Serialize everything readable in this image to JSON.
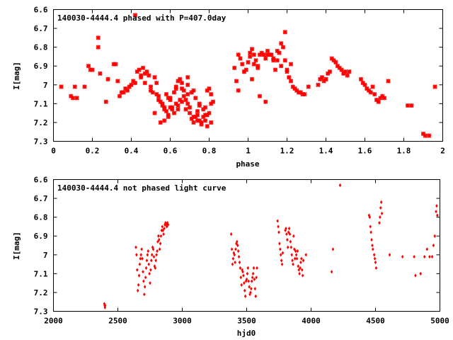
{
  "chart_data": [
    {
      "type": "scatter",
      "title": "140030-4444.4 phased with P=407.0day",
      "xlabel": "phase",
      "ylabel": "I[mag]",
      "xlim": [
        0,
        2
      ],
      "ylim": [
        7.3,
        6.6
      ],
      "y_inverted": true,
      "xticks": [
        "0",
        "0.2",
        "0.4",
        "0.6",
        "0.8",
        "1",
        "1.2",
        "1.4",
        "1.6",
        "1.8",
        "2"
      ],
      "yticks": [
        "6.6",
        "6.7",
        "6.8",
        "6.9",
        "7",
        "7.1",
        "7.2",
        "7.3"
      ],
      "color": "#ff0000",
      "marker": "cross",
      "grid": false,
      "series": [
        {
          "x": [
            0.04,
            0.09,
            0.1,
            0.11,
            0.12,
            0.16,
            0.18,
            0.19,
            0.2,
            0.23,
            0.23,
            0.24,
            0.27,
            0.28,
            0.31,
            0.32,
            0.33,
            0.34,
            0.35,
            0.36,
            0.37,
            0.38,
            0.39,
            0.4,
            0.41,
            0.42,
            0.43,
            0.44,
            0.45,
            0.46,
            0.47,
            0.48,
            0.49,
            0.5,
            0.51,
            0.52,
            0.53,
            0.54,
            0.55,
            0.56,
            0.57,
            0.58,
            0.59,
            0.6,
            0.61,
            0.62,
            0.63,
            0.64,
            0.65,
            0.66,
            0.67,
            0.68,
            0.69,
            0.7,
            0.71,
            0.72,
            0.73,
            0.74,
            0.75,
            0.76,
            0.77,
            0.78,
            0.79,
            0.8,
            0.81,
            0.82,
            0.42,
            0.45,
            0.47,
            0.5,
            0.53,
            0.56,
            0.58,
            0.6,
            0.62,
            0.64,
            0.66,
            0.68,
            0.7,
            0.72,
            0.74,
            0.76,
            0.78,
            0.8,
            0.52,
            0.55,
            0.57,
            0.59,
            0.61,
            0.63,
            0.65,
            0.67,
            0.69,
            0.71,
            0.73,
            0.75,
            0.77,
            0.79,
            0.81,
            0.57,
            0.6,
            0.63,
            0.66,
            0.69,
            0.72,
            0.75,
            0.78,
            0.81,
            0.54,
            0.59,
            0.64,
            0.69,
            0.74,
            0.79,
            0.93,
            0.94,
            0.95,
            0.96,
            0.97,
            0.98,
            0.99,
            1.0,
            1.01,
            1.02,
            1.03,
            1.04,
            1.05,
            1.06,
            1.07,
            1.08,
            1.09,
            1.1,
            1.11,
            1.12,
            1.13,
            1.14,
            1.15,
            1.16,
            1.17,
            1.18,
            1.19,
            1.2,
            1.21,
            1.22,
            1.23,
            1.24,
            1.25,
            1.26,
            1.27,
            1.28,
            1.29,
            1.31,
            1.36,
            1.37,
            1.38,
            1.39,
            1.4,
            1.41,
            1.42,
            1.43,
            1.44,
            1.45,
            1.46,
            1.47,
            1.48,
            1.49,
            1.5,
            1.51,
            1.52,
            1.58,
            1.59,
            1.6,
            1.61,
            1.62,
            1.63,
            1.64,
            1.65,
            1.66,
            1.67,
            1.68,
            1.69,
            1.7,
            1.72,
            1.82,
            1.84,
            1.9,
            1.91,
            1.93,
            1.96,
            1.01,
            1.03,
            1.06,
            1.09,
            1.15,
            1.19,
            1.22,
            0.95,
            0.98,
            1.02,
            1.05,
            1.08,
            1.1,
            1.13,
            1.17,
            1.2
          ],
          "y": [
            7.01,
            7.06,
            7.07,
            7.01,
            7.07,
            7.01,
            6.9,
            6.92,
            6.92,
            6.75,
            6.8,
            6.94,
            7.09,
            6.97,
            6.89,
            6.89,
            6.98,
            7.06,
            7.04,
            7.04,
            7.02,
            7.03,
            7.01,
            7.0,
            6.98,
            6.99,
            6.93,
            6.92,
            6.96,
            6.91,
            6.94,
            6.93,
            6.95,
            7.01,
            7.04,
            6.96,
            6.99,
            7.06,
            7.09,
            7.11,
            7.13,
            7.05,
            7.07,
            7.08,
            7.12,
            7.04,
            7.01,
            6.98,
            6.97,
            7.02,
            7.06,
            7.13,
            7.1,
            7.15,
            7.18,
            7.2,
            7.17,
            7.14,
            7.19,
            7.2,
            7.17,
            7.12,
            7.03,
            7.02,
            7.05,
            7.09,
            6.63,
            6.95,
            6.99,
            7.03,
            7.05,
            7.1,
            7.14,
            7.12,
            7.15,
            7.11,
            7.09,
            7.08,
            7.12,
            7.17,
            7.19,
            7.21,
            7.19,
            7.15,
            7.15,
            7.2,
            7.19,
            7.17,
            7.13,
            7.1,
            7.08,
            7.03,
            7.0,
            7.04,
            7.07,
            7.1,
            7.13,
            7.16,
            7.1,
            7.12,
            7.07,
            7.02,
            6.99,
            6.96,
            7.03,
            7.11,
            7.16,
            7.2,
            7.08,
            7.16,
            7.13,
            7.05,
            7.16,
            7.22,
            6.91,
            6.98,
            7.03,
            6.86,
            6.89,
            6.93,
            6.92,
            6.88,
            6.85,
            6.81,
            6.84,
            6.87,
            6.9,
            6.84,
            6.83,
            6.84,
            6.86,
            6.84,
            6.84,
            6.84,
            6.87,
            6.92,
            6.87,
            6.83,
            6.78,
            6.8,
            6.87,
            6.93,
            6.96,
            6.98,
            7.01,
            7.02,
            7.03,
            7.04,
            7.04,
            7.05,
            7.05,
            7.01,
            7.0,
            6.97,
            6.96,
            6.98,
            6.97,
            6.94,
            6.93,
            6.86,
            6.87,
            6.88,
            6.9,
            6.91,
            6.92,
            6.94,
            6.93,
            6.95,
            6.93,
            6.97,
            6.99,
            7.0,
            7.02,
            7.03,
            7.04,
            7.01,
            7.05,
            7.08,
            7.09,
            7.07,
            7.06,
            7.07,
            6.98,
            7.11,
            7.11,
            7.26,
            7.27,
            7.27,
            7.01,
            6.83,
            6.89,
            7.06,
            7.09,
            6.82,
            6.72,
            6.89,
            6.84,
            6.93,
            6.97,
            6.91,
            6.84,
            6.82,
            6.86,
            6.9,
            6.92
          ]
        }
      ]
    },
    {
      "type": "scatter",
      "title": "140030-4444.4 not phased light curve",
      "xlabel": "hjd0",
      "ylabel": "I[mag]",
      "xlim": [
        2000,
        5000
      ],
      "ylim": [
        7.3,
        6.6
      ],
      "y_inverted": true,
      "xticks": [
        "2000",
        "2500",
        "3000",
        "3500",
        "4000",
        "4500",
        "5000"
      ],
      "yticks": [
        "6.6",
        "6.7",
        "6.8",
        "6.9",
        "7",
        "7.1",
        "7.2",
        "7.3"
      ],
      "color": "#ff0000",
      "marker": "diamond",
      "grid": false,
      "series": [
        {
          "x": [
            2395,
            2398,
            2400,
            2402,
            2640,
            2645,
            2650,
            2655,
            2660,
            2665,
            2670,
            2675,
            2680,
            2685,
            2690,
            2695,
            2700,
            2705,
            2710,
            2715,
            2720,
            2725,
            2730,
            2735,
            2740,
            2745,
            2750,
            2755,
            2760,
            2765,
            2770,
            2775,
            2780,
            2785,
            2790,
            2795,
            2800,
            2805,
            2810,
            2815,
            2820,
            2825,
            2830,
            2835,
            2840,
            2845,
            2850,
            2855,
            2860,
            2865,
            2870,
            2875,
            2880,
            2885,
            2890,
            3380,
            3385,
            3390,
            3395,
            3400,
            3405,
            3410,
            3415,
            3420,
            3425,
            3430,
            3435,
            3440,
            3445,
            3450,
            3455,
            3460,
            3465,
            3470,
            3475,
            3480,
            3485,
            3490,
            3495,
            3500,
            3505,
            3510,
            3515,
            3520,
            3525,
            3530,
            3535,
            3540,
            3545,
            3550,
            3555,
            3560,
            3565,
            3570,
            3575,
            3580,
            3740,
            3745,
            3750,
            3755,
            3760,
            3765,
            3770,
            3775,
            3780,
            3800,
            3805,
            3810,
            3815,
            3820,
            3825,
            3830,
            3835,
            3840,
            3845,
            3850,
            3855,
            3860,
            3865,
            3870,
            3875,
            3880,
            3885,
            3890,
            3895,
            3900,
            3905,
            3910,
            3915,
            3920,
            3925,
            3930,
            3935,
            3940,
            3960,
            4160,
            4170,
            4225,
            4450,
            4455,
            4460,
            4465,
            4470,
            4475,
            4480,
            4490,
            4495,
            4500,
            4505,
            4530,
            4535,
            4540,
            4545,
            4550,
            4610,
            4710,
            4800,
            4810,
            4850,
            4880,
            4900,
            4920,
            4940,
            4950,
            4960,
            4970,
            4975,
            4980
          ],
          "y": [
            7.26,
            7.27,
            7.28,
            7.27,
            6.96,
            7.0,
            7.08,
            7.19,
            7.16,
            7.11,
            7.05,
            7.02,
            7.0,
            6.97,
            7.02,
            7.09,
            7.14,
            7.21,
            7.17,
            7.12,
            7.07,
            7.03,
            7.0,
            6.98,
            7.05,
            7.1,
            7.15,
            7.08,
            7.03,
            7.0,
            6.96,
            6.97,
            7.01,
            7.06,
            7.07,
            7.03,
            7.0,
            6.98,
            6.93,
            6.9,
            6.92,
            6.97,
            6.94,
            6.9,
            6.87,
            6.85,
            6.87,
            6.89,
            6.86,
            6.84,
            6.83,
            6.84,
            6.85,
            6.83,
            6.84,
            6.89,
            6.97,
            7.05,
            7.02,
            6.99,
            7.0,
            7.04,
            6.97,
            6.94,
            6.93,
            6.95,
            6.98,
            7.01,
            7.04,
            7.07,
            7.12,
            7.16,
            7.08,
            7.09,
            7.11,
            7.15,
            7.19,
            7.22,
            7.14,
            7.13,
            7.1,
            7.07,
            7.14,
            7.17,
            7.21,
            7.2,
            7.18,
            7.14,
            7.12,
            7.1,
            7.07,
            7.13,
            7.18,
            7.22,
            7.12,
            7.07,
            6.82,
            6.85,
            6.88,
            6.94,
            6.97,
            7.0,
            7.03,
            7.05,
            6.99,
            6.87,
            6.86,
            6.89,
            6.92,
            6.96,
            6.88,
            6.86,
            6.89,
            6.93,
            6.96,
            7.0,
            7.03,
            7.05,
            6.9,
            6.97,
            7.02,
            6.98,
            7.0,
            7.02,
            6.98,
            7.06,
            7.08,
            7.1,
            7.07,
            7.04,
            7.02,
            7.08,
            7.11,
            7.03,
            7.0,
            7.09,
            6.97,
            6.63,
            6.79,
            6.8,
            6.85,
            6.88,
            6.92,
            6.95,
            6.97,
            7.0,
            7.02,
            7.04,
            7.07,
            6.83,
            6.8,
            6.75,
            6.72,
            6.78,
            7.0,
            7.01,
            7.01,
            7.11,
            7.1,
            7.01,
            6.97,
            7.01,
            7.01,
            6.95,
            6.9,
            6.77,
            6.74,
            6.79
          ]
        }
      ]
    }
  ]
}
